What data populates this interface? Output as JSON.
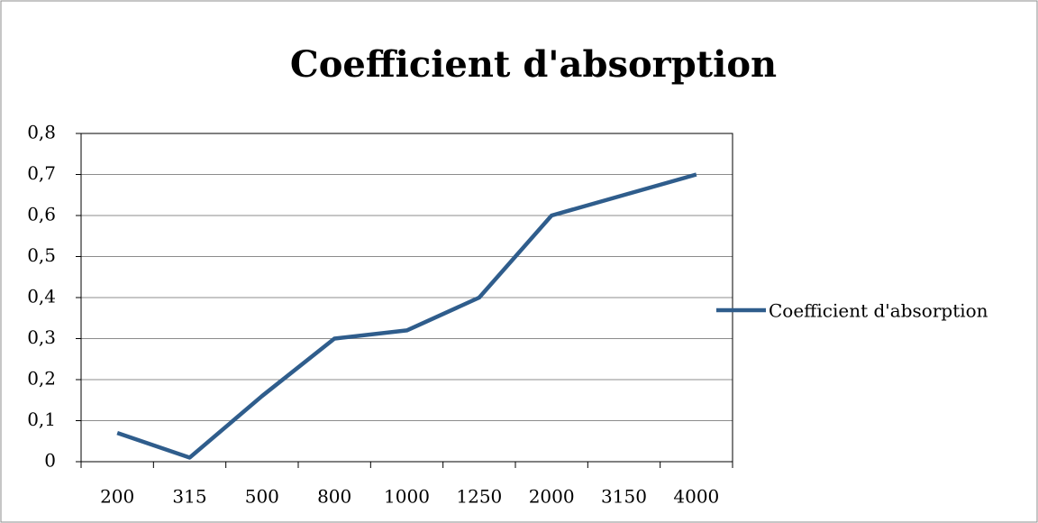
{
  "chart_data": {
    "type": "line",
    "title": "Coefficient d'absorption",
    "categories": [
      "200",
      "315",
      "500",
      "800",
      "1000",
      "1250",
      "2000",
      "3150",
      "4000"
    ],
    "series": [
      {
        "name": "Coefficient d'absorption",
        "color": "#2f5d8c",
        "values": [
          0.07,
          0.01,
          0.16,
          0.3,
          0.32,
          0.4,
          0.6,
          0.65,
          0.7
        ]
      }
    ],
    "ylim": [
      0,
      0.8
    ],
    "yticks": [
      0,
      {
        "value": 0.1,
        "label": "0,1"
      },
      {
        "value": 0.2,
        "label": "0,2"
      },
      {
        "value": 0.3,
        "label": "0,3"
      },
      {
        "value": 0.4,
        "label": "0,4"
      },
      {
        "value": 0.5,
        "label": "0,5"
      },
      {
        "value": 0.6,
        "label": "0,6"
      },
      {
        "value": 0.7,
        "label": "0,7"
      },
      {
        "value": 0.8,
        "label": "0,8"
      }
    ],
    "grid": true,
    "legend": "right"
  }
}
